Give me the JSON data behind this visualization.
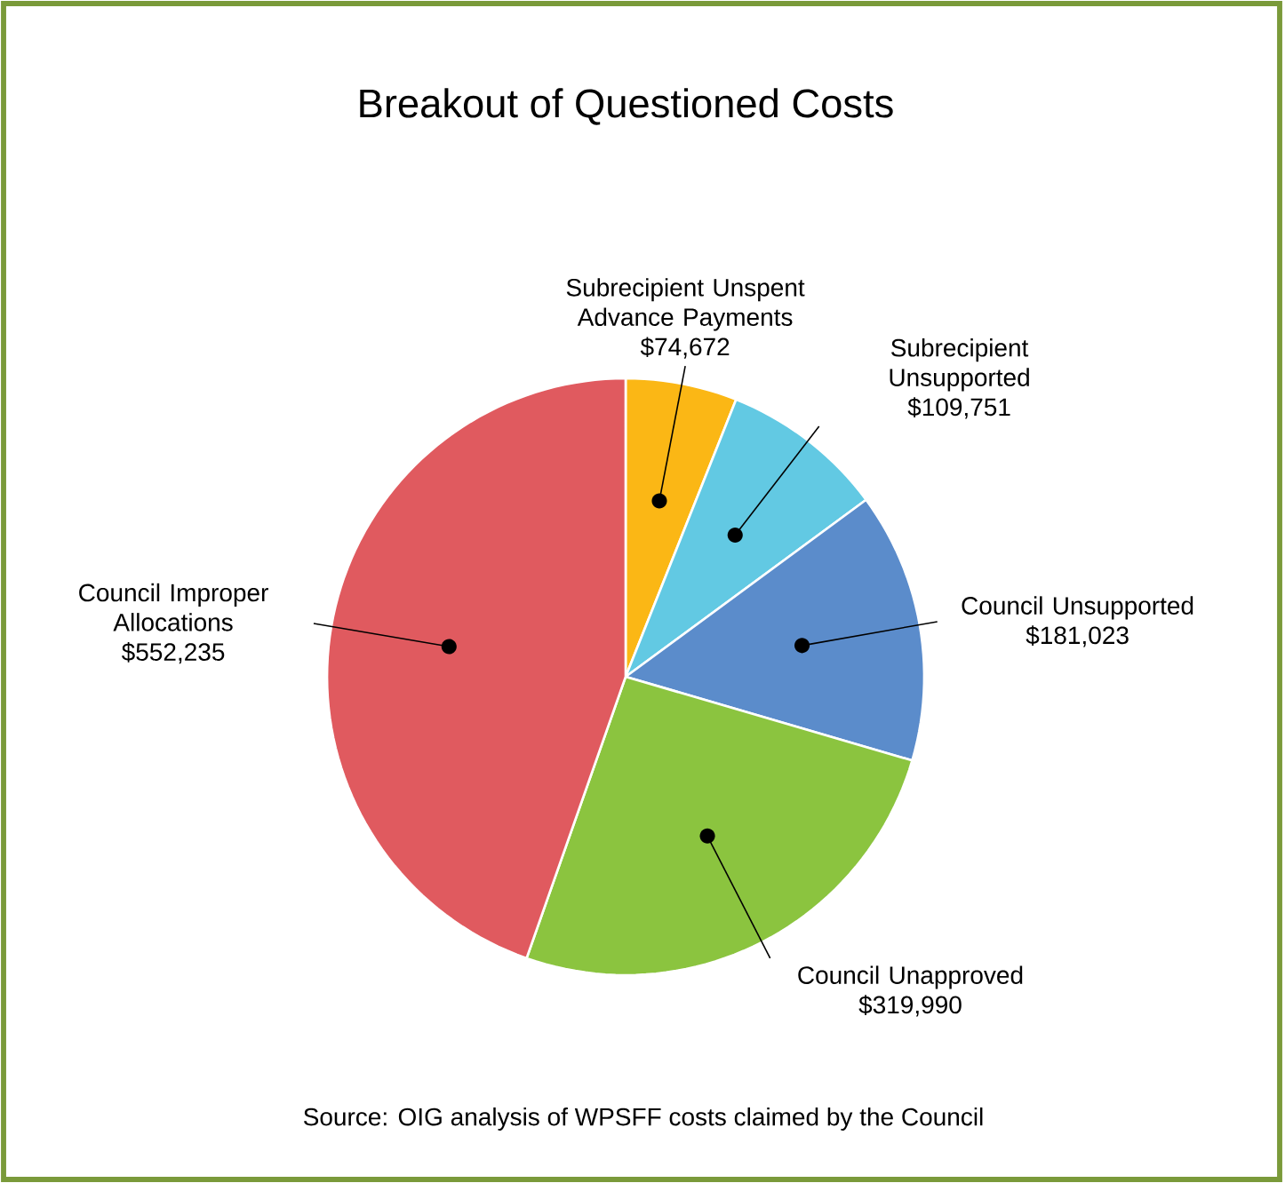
{
  "chart_data": {
    "type": "pie",
    "title": "Breakout of Questioned Costs",
    "categories": [
      "Subrecipient Unspent Advance Payments",
      "Subrecipient Unsupported",
      "Council Unsupported",
      "Council Unapproved",
      "Council Improper Allocations"
    ],
    "values": [
      74672,
      109751,
      181023,
      319990,
      552235
    ],
    "value_labels": [
      "$74,672",
      "$109,751",
      "$181,023",
      "$319,990",
      "$552,235"
    ],
    "colors": [
      "#fbb715",
      "#62c9e3",
      "#5b8ccb",
      "#8bc43f",
      "#e05a5f"
    ],
    "annotations": [
      "Source:  OIG analysis of WPSFF costs claimed by the Council"
    ]
  }
}
